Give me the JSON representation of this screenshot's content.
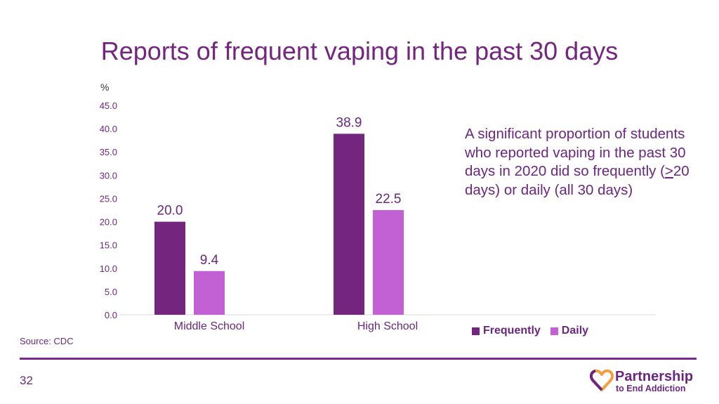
{
  "slide": {
    "title": "Reports of frequent vaping in the past 30 days",
    "annotation_pre": "A significant proportion of students who reported vaping in the past 30 days in 2020 did so frequently (",
    "annotation_ge": ">",
    "annotation_post": "20 days) or daily (all 30 days)",
    "source": "Source: CDC",
    "page_number": "32",
    "logo_line1": "Partnership",
    "logo_line2": "to End Addiction"
  },
  "colors": {
    "frequently": "#74267F",
    "daily": "#C161D4",
    "brand_purple": "#6B2680",
    "logo_orange": "#F2A03D"
  },
  "chart_data": {
    "type": "bar",
    "title": "",
    "ylabel": "%",
    "xlabel": "",
    "categories": [
      "Middle School",
      "High School"
    ],
    "series": [
      {
        "name": "Frequently",
        "values": [
          20.0,
          38.9
        ],
        "labels": [
          "20.0",
          "38.9"
        ]
      },
      {
        "name": "Daily",
        "values": [
          9.4,
          22.5
        ],
        "labels": [
          "9.4",
          "22.5"
        ]
      }
    ],
    "ylim": [
      0,
      45
    ],
    "yticks": [
      "0.0",
      "5.0",
      "10.0",
      "15.0",
      "20.0",
      "25.0",
      "30.0",
      "35.0",
      "40.0",
      "45.0"
    ],
    "grid": false,
    "legend": "bottom-right"
  }
}
